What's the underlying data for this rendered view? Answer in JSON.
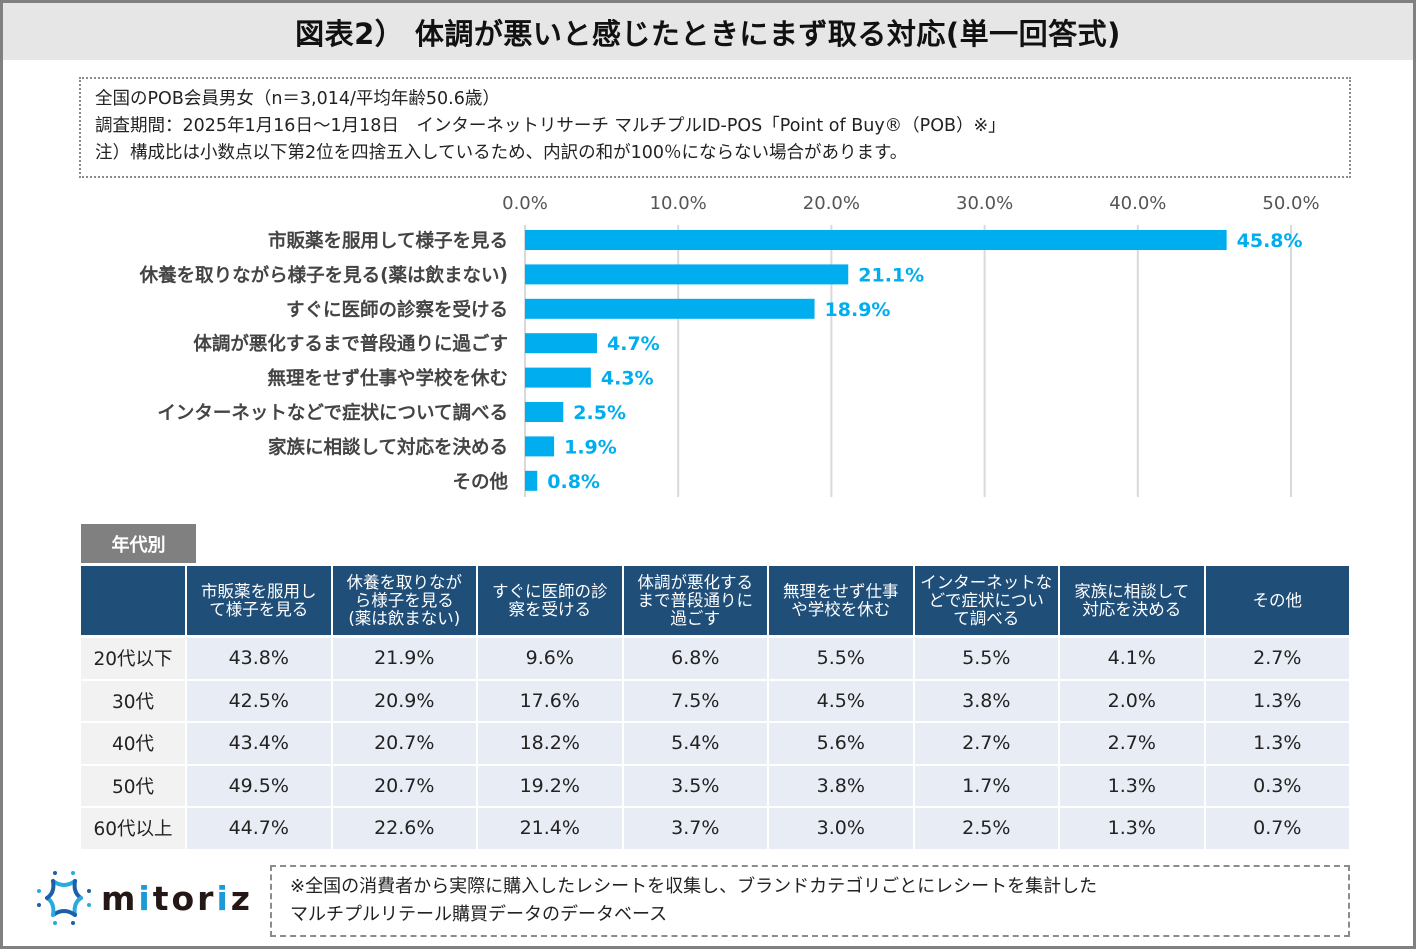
{
  "title": "図表2） 体調が悪いと感じたときにまず取る対応(単一回答式)",
  "notes": [
    "全国のPOB会員男女（n＝3,014/平均年齢50.6歳）",
    "調査期間：2025年1月16日～1月18日　インターネットリサーチ マルチプルID-POS「Point of Buy®（POB）※」",
    "注）構成比は小数点以下第2位を四捨五入しているため、内訳の和が100％にならない場合があります。"
  ],
  "chart_data": {
    "type": "bar",
    "orientation": "horizontal",
    "title": "体調が悪いと感じたときにまず取る対応(単一回答式)",
    "xlabel": "",
    "ylabel": "",
    "xlim": [
      0,
      50
    ],
    "grid": true,
    "legend": "none",
    "tick_values": [
      0,
      10,
      20,
      30,
      40,
      50
    ],
    "tick_labels": [
      "0.0%",
      "10.0%",
      "20.0%",
      "30.0%",
      "40.0%",
      "50.0%"
    ],
    "categories": [
      "市販薬を服用して様子を見る",
      "休養を取りながら様子を見る(薬は飲まない)",
      "すぐに医師の診察を受ける",
      "体調が悪化するまで普段通りに過ごす",
      "無理をせず仕事や学校を休む",
      "インターネットなどで症状について調べる",
      "家族に相談して対応を決める",
      "その他"
    ],
    "values": [
      45.8,
      21.1,
      18.9,
      4.7,
      4.3,
      2.5,
      1.9,
      0.8
    ],
    "value_labels": [
      "45.8%",
      "21.1%",
      "18.9%",
      "4.7%",
      "4.3%",
      "2.5%",
      "1.9%",
      "0.8%"
    ],
    "bar_color": "#00aeef",
    "label_color": "#00aeef"
  },
  "age_section": {
    "tag": "年代別",
    "columns": [
      "",
      "市販薬を服用して様子を見る",
      "休養を取りながら様子を見る(薬は飲まない)",
      "すぐに医師の診察を受ける",
      "体調が悪化するまで普段通りに過ごす",
      "無理をせず仕事や学校を休む",
      "インターネットなどで症状について調べる",
      "家族に相談して対応を決める",
      "その他"
    ],
    "column_lines": [
      [
        ""
      ],
      [
        "市販薬を服用し",
        "て様子を見る"
      ],
      [
        "休養を取りなが",
        "ら様子を見る",
        "(薬は飲まない)"
      ],
      [
        "すぐに医師の診",
        "察を受ける"
      ],
      [
        "体調が悪化する",
        "まで普段通りに",
        "過ごす"
      ],
      [
        "無理をせず仕事",
        "や学校を休む"
      ],
      [
        "インターネットな",
        "どで症状につい",
        "て調べる"
      ],
      [
        "家族に相談して",
        "対応を決める"
      ],
      [
        "その他"
      ]
    ],
    "rows": [
      {
        "age": "20代以下",
        "values": [
          "43.8%",
          "21.9%",
          "9.6%",
          "6.8%",
          "5.5%",
          "5.5%",
          "4.1%",
          "2.7%"
        ]
      },
      {
        "age": "30代",
        "values": [
          "42.5%",
          "20.9%",
          "17.6%",
          "7.5%",
          "4.5%",
          "3.8%",
          "2.0%",
          "1.3%"
        ]
      },
      {
        "age": "40代",
        "values": [
          "43.4%",
          "20.7%",
          "18.2%",
          "5.4%",
          "5.6%",
          "2.7%",
          "2.7%",
          "1.3%"
        ]
      },
      {
        "age": "50代",
        "values": [
          "49.5%",
          "20.7%",
          "19.2%",
          "3.5%",
          "3.8%",
          "1.7%",
          "1.3%",
          "0.3%"
        ]
      },
      {
        "age": "60代以上",
        "values": [
          "44.7%",
          "22.6%",
          "21.4%",
          "3.7%",
          "3.0%",
          "2.5%",
          "1.3%",
          "0.7%"
        ]
      }
    ],
    "header_color": "#1f4e79"
  },
  "logo": {
    "text_pre": "m",
    "text_i": "i",
    "text_mid": "tor",
    "text_i2": "i",
    "text_post": "z",
    "icon": "mitoriz-star-logo-icon"
  },
  "footnote": [
    "※全国の消費者から実際に購入したレシートを収集し、ブランドカテゴリごとにレシートを集計した",
    "マルチプルリテール購買データのデータベース"
  ]
}
